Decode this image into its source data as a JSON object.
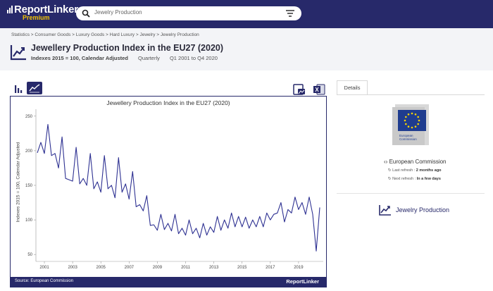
{
  "topbar": {
    "brand": "ReportLinker",
    "brand_sub": "Premium",
    "search": {
      "value": "Jewelry Production"
    }
  },
  "header": {
    "breadcrumb": "Statistics > Consumer Goods > Luxury Goods > Hard Luxury > Jewelry > Jewelry Production",
    "title": "Jewellery Production Index in the EU27 (2020)",
    "unit": "Indexes 2015 = 100, Calendar Adjusted",
    "frequency": "Quarterly",
    "period": "Q1 2001 to Q4 2020"
  },
  "chart_toolbar": {
    "active_view": "line"
  },
  "chart": {
    "source": "Source: European Commission",
    "footer_brand": "ReportLinker"
  },
  "chart_data": {
    "type": "line",
    "title": "Jewellery Production Index in the EU27 (2020)",
    "xlabel": "",
    "ylabel": "Indexes 2015 = 100, Calendar Adjusted",
    "ylim": [
      40,
      260
    ],
    "yticks": [
      50,
      100,
      150,
      200,
      250
    ],
    "xticks": [
      "2001",
      "2003",
      "2005",
      "2007",
      "2009",
      "2011",
      "2013",
      "2015",
      "2017",
      "2019"
    ],
    "xlim": [
      2000.4,
      2020.75
    ],
    "grid": false,
    "line_color": "#2e3192",
    "series": [
      {
        "x": [
          2000.5,
          2000.75,
          2001,
          2001.25,
          2001.5,
          2001.75,
          2002,
          2002.25,
          2002.5,
          2002.75,
          2003,
          2003.25,
          2003.5,
          2003.75,
          2004,
          2004.25,
          2004.5,
          2004.75,
          2005,
          2005.25,
          2005.5,
          2005.75,
          2006,
          2006.25,
          2006.5,
          2006.75,
          2007,
          2007.25,
          2007.5,
          2007.75,
          2008,
          2008.25,
          2008.5,
          2008.75,
          2009,
          2009.25,
          2009.5,
          2009.75,
          2010,
          2010.25,
          2010.5,
          2010.75,
          2011,
          2011.25,
          2011.5,
          2011.75,
          2012,
          2012.25,
          2012.5,
          2012.75,
          2013,
          2013.25,
          2013.5,
          2013.75,
          2014,
          2014.25,
          2014.5,
          2014.75,
          2015,
          2015.25,
          2015.5,
          2015.75,
          2016,
          2016.25,
          2016.5,
          2016.75,
          2017,
          2017.25,
          2017.5,
          2017.75,
          2018,
          2018.25,
          2018.5,
          2018.75,
          2019,
          2019.25,
          2019.5,
          2019.75,
          2020,
          2020.25,
          2020.5
        ],
        "values": [
          197,
          212,
          196,
          238,
          193,
          196,
          175,
          220,
          160,
          158,
          156,
          205,
          152,
          160,
          150,
          196,
          145,
          155,
          140,
          193,
          145,
          150,
          132,
          190,
          140,
          152,
          130,
          170,
          119,
          122,
          113,
          135,
          92,
          93,
          85,
          108,
          86,
          95,
          84,
          108,
          80,
          88,
          78,
          100,
          80,
          88,
          74,
          95,
          78,
          90,
          82,
          105,
          85,
          100,
          88,
          110,
          90,
          105,
          90,
          104,
          88,
          100,
          90,
          105,
          90,
          110,
          100,
          108,
          110,
          125,
          97,
          115,
          110,
          133,
          115,
          125,
          108,
          133,
          108,
          55,
          118
        ]
      }
    ]
  },
  "details": {
    "tab_label": "Details",
    "provider": "European Commission",
    "last_refresh_label": "Last refresh :",
    "last_refresh_value": "2 months ago",
    "next_refresh_label": "Next refresh :",
    "next_refresh_value": "In a few days",
    "ec_logo_text_1": "European",
    "ec_logo_text_2": "Commission",
    "related_topic": "Jewelry Production"
  }
}
